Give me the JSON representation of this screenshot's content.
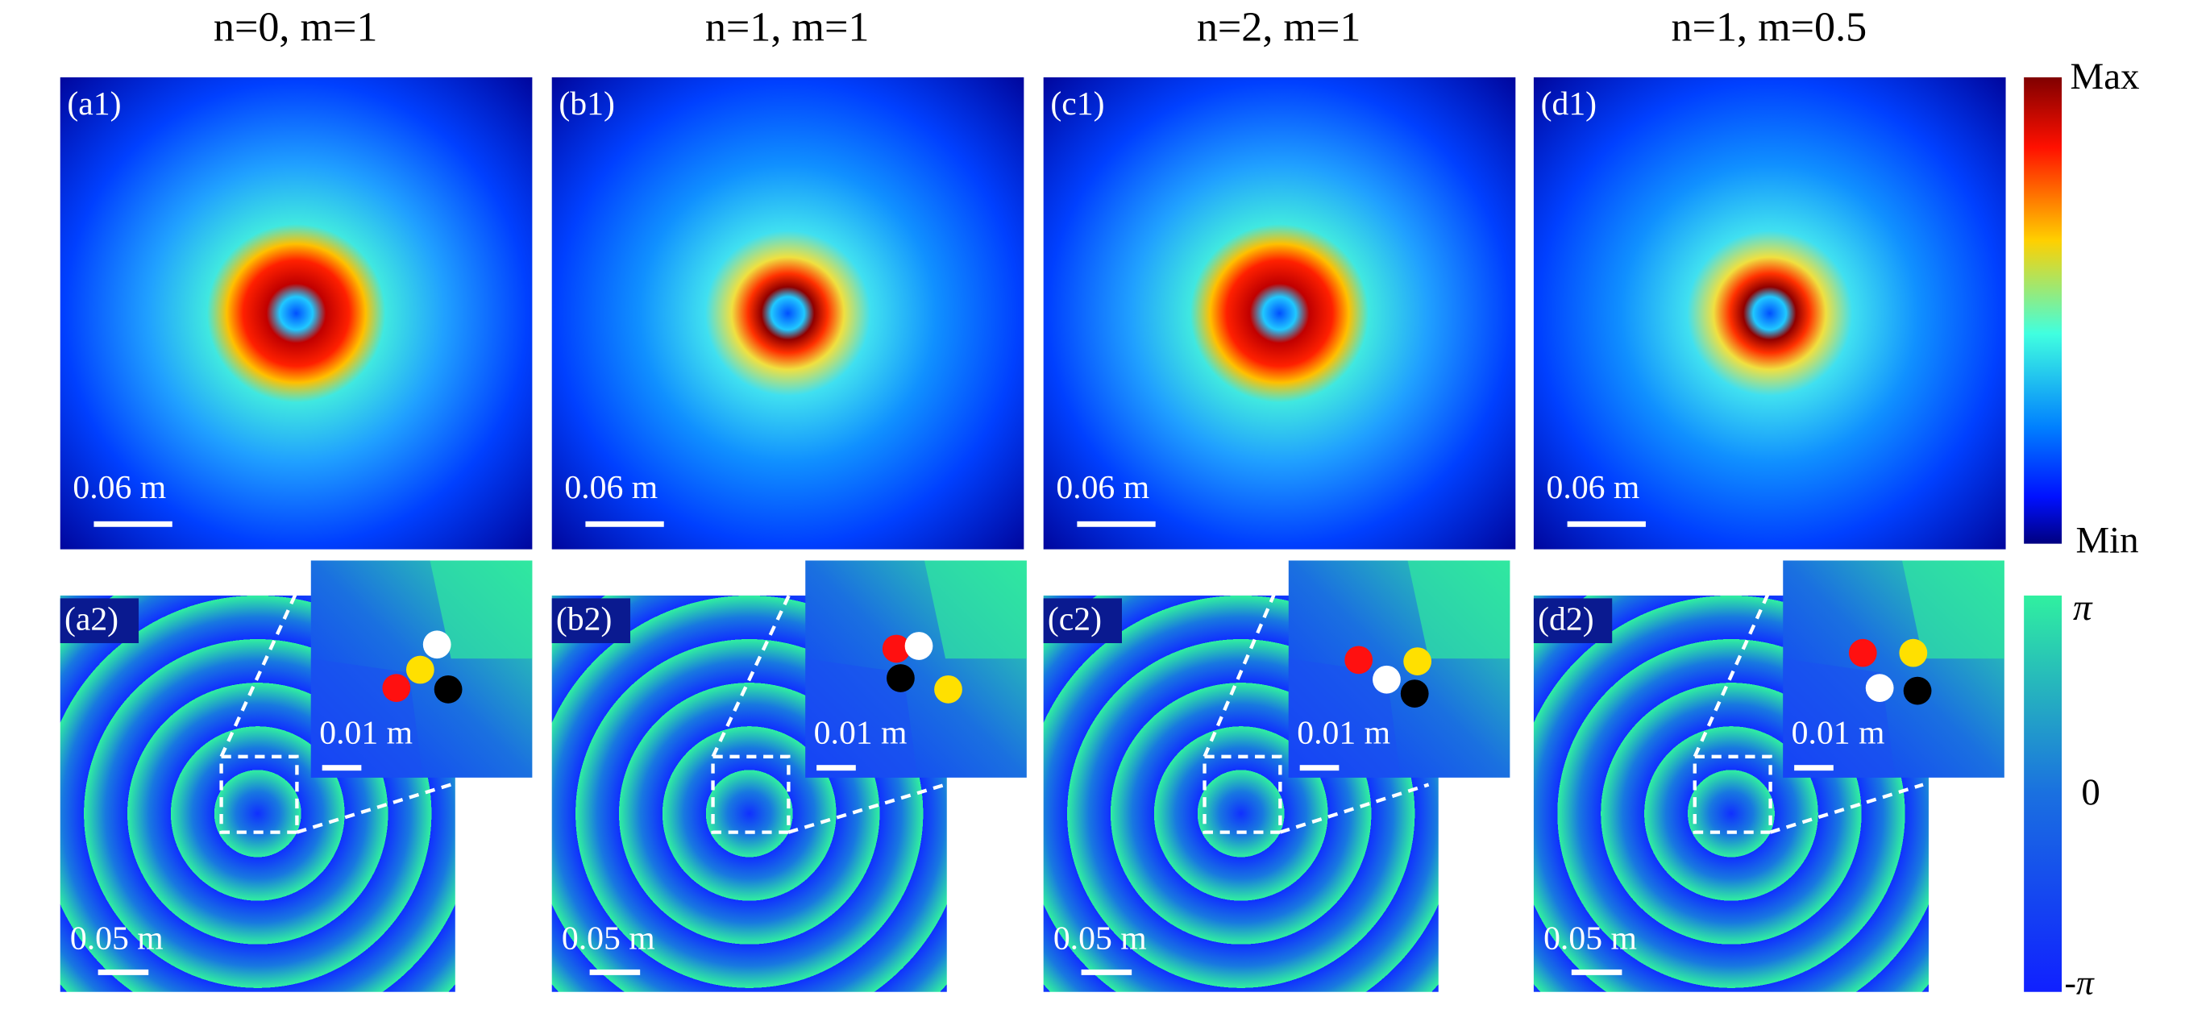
{
  "columns": [
    {
      "title": "n=0, m=1",
      "intensity": {
        "label": "(a1)",
        "scale": "0.06 m"
      },
      "phase": {
        "label": "(a2)",
        "scale": "0.05 m",
        "inset_scale": "0.01 m"
      }
    },
    {
      "title": "n=1, m=1",
      "intensity": {
        "label": "(b1)",
        "scale": "0.06 m"
      },
      "phase": {
        "label": "(b2)",
        "scale": "0.05 m",
        "inset_scale": "0.01 m"
      }
    },
    {
      "title": "n=2, m=1",
      "intensity": {
        "label": "(c1)",
        "scale": "0.06 m"
      },
      "phase": {
        "label": "(c2)",
        "scale": "0.05 m",
        "inset_scale": "0.01 m"
      }
    },
    {
      "title": "n=1, m=0.5",
      "intensity": {
        "label": "(d1)",
        "scale": "0.06 m"
      },
      "phase": {
        "label": "(d2)",
        "scale": "0.05 m",
        "inset_scale": "0.01 m"
      }
    }
  ],
  "colorbars": {
    "intensity": {
      "max": "Max",
      "min": "Min"
    },
    "phase": {
      "max": "π",
      "mid": "0",
      "min": "-π"
    }
  }
}
